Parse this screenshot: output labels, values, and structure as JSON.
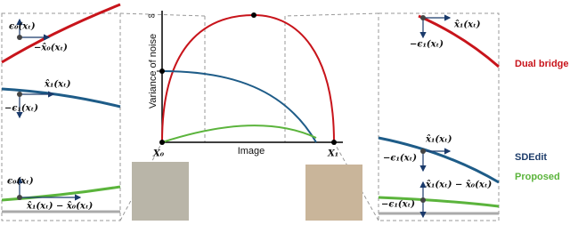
{
  "left_panel": {
    "labels": [
      "ϵ₀(xₜ)",
      "−x̂₀(xₜ)",
      "x̂₁(xₜ)",
      "−ϵ₁(xₜ)",
      "ϵ₀(xₜ)",
      "x̂₁(xₜ) − x̂₀(xₜ)"
    ]
  },
  "center_plot": {
    "y_axis_label": "Variance of noise",
    "x_axis_label": "Image",
    "infinity": "∞",
    "start": "X₀",
    "end": "X₁"
  },
  "right_panel": {
    "labels": [
      "x̂₁(xₜ)",
      "−ϵ₁(xₜ)",
      "x̂₁(xₜ)",
      "−ϵ₁(xₜ)",
      "x̂₁(xₜ) − x̂₀(xₜ)",
      "−ϵ₁(xₜ)"
    ]
  },
  "legend": {
    "dual_bridge": "Dual bridge",
    "sdedit": "SDEdit",
    "proposed": "Proposed"
  }
}
